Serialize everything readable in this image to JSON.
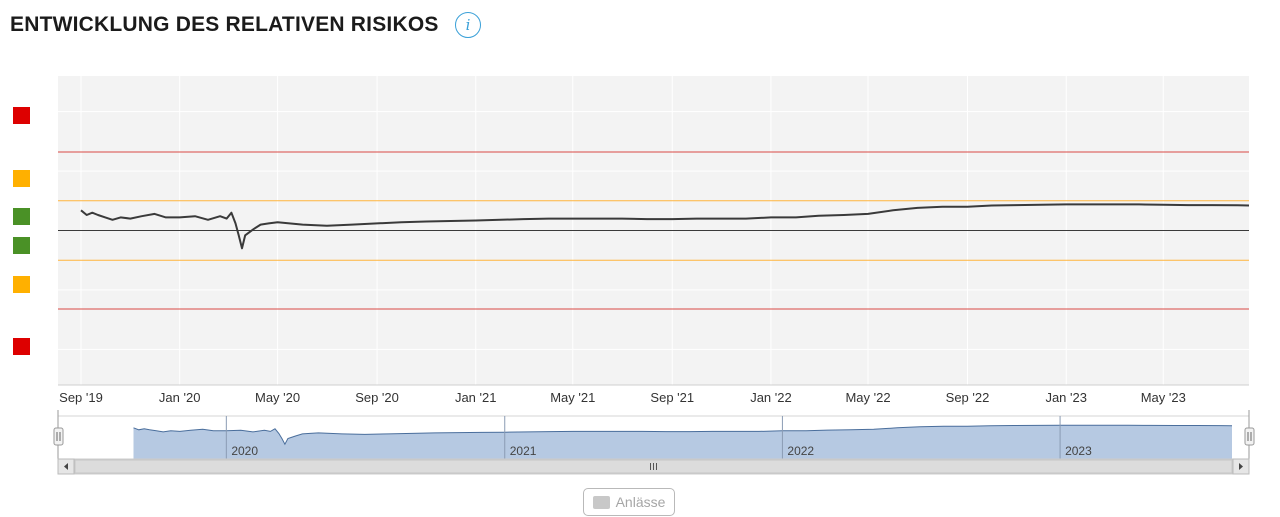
{
  "header": {
    "title": "ENTWICKLUNG DES RELATIVEN RISIKOS",
    "info_icon": "info-circle-icon",
    "info_glyph": "i"
  },
  "risk_legend": [
    {
      "level": "high",
      "color": "#dd0000"
    },
    {
      "level": "medium",
      "color": "#ffb000"
    },
    {
      "level": "low",
      "color": "#4a9126"
    },
    {
      "level": "low",
      "color": "#4a9126"
    },
    {
      "level": "medium",
      "color": "#ffb000"
    },
    {
      "level": "high",
      "color": "#dd0000"
    }
  ],
  "colors": {
    "plot_background": "#f3f3f3",
    "grid": "#ffffff",
    "line": "#3a3a3a",
    "red_band": "#d94a44",
    "orange_band": "#ffb43c",
    "baseline": "#3a3a3a",
    "navigator_fill": "#b6c9e2",
    "navigator_line": "#4a6e9c"
  },
  "chart_data": {
    "type": "line",
    "title": "ENTWICKLUNG DES RELATIVEN RISIKOS",
    "xlabel": "",
    "ylabel": "",
    "x_range": [
      "2019-09-01",
      "2023-08-15"
    ],
    "ylim": [
      -6.5,
      6.5
    ],
    "x_ticks": [
      {
        "date": "2019-09-01",
        "label": "Sep '19"
      },
      {
        "date": "2020-01-01",
        "label": "Jan '20"
      },
      {
        "date": "2020-05-01",
        "label": "May '20"
      },
      {
        "date": "2020-09-01",
        "label": "Sep '20"
      },
      {
        "date": "2021-01-01",
        "label": "Jan '21"
      },
      {
        "date": "2021-05-01",
        "label": "May '21"
      },
      {
        "date": "2021-09-01",
        "label": "Sep '21"
      },
      {
        "date": "2022-01-01",
        "label": "Jan '22"
      },
      {
        "date": "2022-05-01",
        "label": "May '22"
      },
      {
        "date": "2022-09-01",
        "label": "Sep '22"
      },
      {
        "date": "2023-01-01",
        "label": "Jan '23"
      },
      {
        "date": "2023-05-01",
        "label": "May '23"
      }
    ],
    "reference_lines": [
      {
        "y": 3.3,
        "color": "#d94a44"
      },
      {
        "y": 1.25,
        "color": "#ffb43c"
      },
      {
        "y": 0,
        "color": "#3a3a3a"
      },
      {
        "y": -1.25,
        "color": "#ffb43c"
      },
      {
        "y": -3.3,
        "color": "#d94a44"
      }
    ],
    "grid": true,
    "series": [
      {
        "x": [
          "2019-09-01",
          "2019-09-08",
          "2019-09-15",
          "2019-09-22",
          "2019-10-01",
          "2019-10-10",
          "2019-10-20",
          "2019-11-01",
          "2019-11-15",
          "2019-12-01",
          "2019-12-15",
          "2020-01-01",
          "2020-01-20",
          "2020-02-05",
          "2020-02-20",
          "2020-02-28",
          "2020-03-05",
          "2020-03-10",
          "2020-03-14",
          "2020-03-18",
          "2020-03-22",
          "2020-03-26",
          "2020-04-01",
          "2020-04-10",
          "2020-04-20",
          "2020-05-01",
          "2020-06-01",
          "2020-07-01",
          "2020-08-01",
          "2020-09-01",
          "2020-10-01",
          "2020-11-01",
          "2020-12-01",
          "2021-01-01",
          "2021-02-01",
          "2021-03-01",
          "2021-04-01",
          "2021-05-01",
          "2021-06-01",
          "2021-07-01",
          "2021-08-01",
          "2021-09-01",
          "2021-10-01",
          "2021-11-01",
          "2021-12-01",
          "2022-01-01",
          "2022-02-01",
          "2022-03-01",
          "2022-04-01",
          "2022-05-01",
          "2022-06-01",
          "2022-07-01",
          "2022-08-01",
          "2022-09-01",
          "2022-10-01",
          "2022-11-01",
          "2022-12-01",
          "2023-01-01",
          "2023-02-01",
          "2023-03-01",
          "2023-04-01",
          "2023-05-01",
          "2023-06-01",
          "2023-07-01",
          "2023-08-01",
          "2023-08-15"
        ],
        "y": [
          0.85,
          0.65,
          0.75,
          0.65,
          0.55,
          0.45,
          0.55,
          0.5,
          0.6,
          0.7,
          0.55,
          0.55,
          0.6,
          0.45,
          0.6,
          0.5,
          0.75,
          0.3,
          -0.2,
          -0.75,
          -0.2,
          -0.1,
          0.05,
          0.25,
          0.3,
          0.35,
          0.25,
          0.2,
          0.25,
          0.3,
          0.35,
          0.38,
          0.4,
          0.42,
          0.45,
          0.48,
          0.5,
          0.5,
          0.5,
          0.5,
          0.48,
          0.48,
          0.5,
          0.5,
          0.5,
          0.55,
          0.55,
          0.62,
          0.65,
          0.7,
          0.85,
          0.95,
          1.0,
          1.0,
          1.05,
          1.07,
          1.08,
          1.1,
          1.1,
          1.1,
          1.1,
          1.08,
          1.07,
          1.07,
          1.06,
          1.05
        ]
      }
    ],
    "navigator": {
      "year_labels": [
        {
          "date": "2020-01-01",
          "label": "2020"
        },
        {
          "date": "2021-01-01",
          "label": "2021"
        },
        {
          "date": "2022-01-01",
          "label": "2022"
        },
        {
          "date": "2023-01-01",
          "label": "2023"
        }
      ]
    }
  },
  "footer": {
    "anlaesse_label": "Anlässe"
  }
}
